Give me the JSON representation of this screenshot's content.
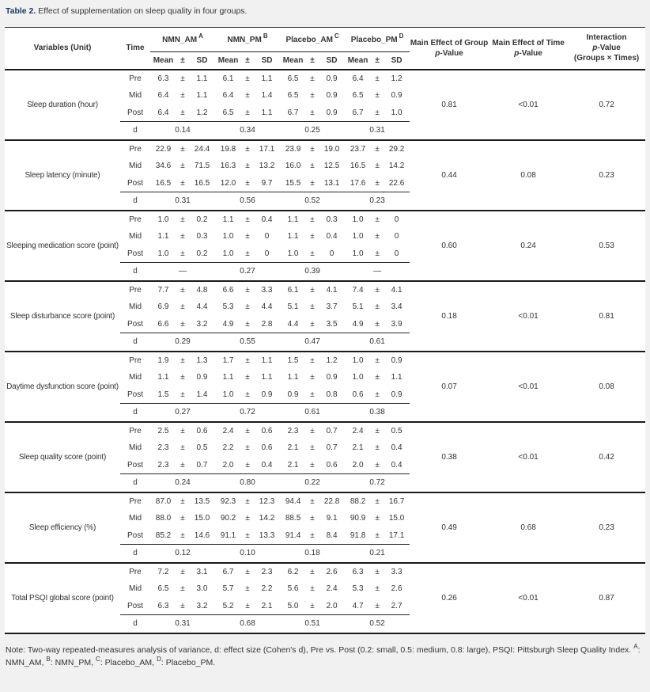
{
  "header": {
    "table_label": "Table 2.",
    "table_caption": " Effect of supplementation on sleep quality in four groups."
  },
  "table": {
    "header": {
      "variables": "Variables (Unit)",
      "time": "Time",
      "groups": [
        {
          "name": "NMN_AM",
          "sup": "A"
        },
        {
          "name": "NMN_PM",
          "sup": "B"
        },
        {
          "name": "Placebo_AM",
          "sup": "C"
        },
        {
          "name": "Placebo_PM",
          "sup": "D"
        }
      ],
      "mean": "Mean",
      "pm": "±",
      "sd": "SD",
      "p_italic": "p",
      "p_suffix": "-Value",
      "group_effect": "Main Effect of Group",
      "time_effect": "Main Effect of Time",
      "interaction": "Interaction",
      "interaction_sub": "(Groups × Times)"
    },
    "blocks": [
      {
        "variable": "Sleep duration (hour)",
        "times": [
          {
            "time": "Pre",
            "values": [
              [
                "6.3",
                "1.1"
              ],
              [
                "6.1",
                "1.1"
              ],
              [
                "6.5",
                "0.9"
              ],
              [
                "6.4",
                "1.2"
              ]
            ]
          },
          {
            "time": "Mid",
            "values": [
              [
                "6.4",
                "1.1"
              ],
              [
                "6.4",
                "1.4"
              ],
              [
                "6.5",
                "0.9"
              ],
              [
                "6.5",
                "0.9"
              ]
            ]
          },
          {
            "time": "Post",
            "values": [
              [
                "6.4",
                "1.2"
              ],
              [
                "6.5",
                "1.1"
              ],
              [
                "6.7",
                "0.9"
              ],
              [
                "6.7",
                "1.0"
              ]
            ]
          }
        ],
        "d_label": "d",
        "d": [
          "0.14",
          "0.34",
          "0.25",
          "0.31"
        ],
        "p_group": "0.81",
        "p_time": "<0.01",
        "p_interaction": "0.72"
      },
      {
        "variable": "Sleep latency (minute)",
        "times": [
          {
            "time": "Pre",
            "values": [
              [
                "22.9",
                "24.4"
              ],
              [
                "19.8",
                "17.1"
              ],
              [
                "23.9",
                "19.0"
              ],
              [
                "23.7",
                "29.2"
              ]
            ]
          },
          {
            "time": "Mid",
            "values": [
              [
                "34.6",
                "71.5"
              ],
              [
                "16.3",
                "13.2"
              ],
              [
                "16.0",
                "12.5"
              ],
              [
                "16.5",
                "14.2"
              ]
            ]
          },
          {
            "time": "Post",
            "values": [
              [
                "16.5",
                "16.5"
              ],
              [
                "12.0",
                "9.7"
              ],
              [
                "15.5",
                "13.1"
              ],
              [
                "17.6",
                "22.6"
              ]
            ]
          }
        ],
        "d_label": "d",
        "d": [
          "0.31",
          "0.56",
          "0.52",
          "0.23"
        ],
        "p_group": "0.44",
        "p_time": "0.08",
        "p_interaction": "0.23"
      },
      {
        "variable": "Sleeping medication score (point)",
        "times": [
          {
            "time": "Pre",
            "values": [
              [
                "1.0",
                "0.2"
              ],
              [
                "1.1",
                "0.4"
              ],
              [
                "1.1",
                "0.3"
              ],
              [
                "1.0",
                "0"
              ]
            ]
          },
          {
            "time": "Mid",
            "values": [
              [
                "1.1",
                "0.3"
              ],
              [
                "1.0",
                "0"
              ],
              [
                "1.1",
                "0.4"
              ],
              [
                "1.0",
                "0"
              ]
            ]
          },
          {
            "time": "Post",
            "values": [
              [
                "1.0",
                "0.2"
              ],
              [
                "1.0",
                "0"
              ],
              [
                "1.0",
                "0"
              ],
              [
                "1.0",
                "0"
              ]
            ]
          }
        ],
        "d_label": "d",
        "d": [
          "—",
          "0.27",
          "0.39",
          "—"
        ],
        "p_group": "0.60",
        "p_time": "0.24",
        "p_interaction": "0.53"
      },
      {
        "variable": "Sleep disturbance score (point)",
        "times": [
          {
            "time": "Pre",
            "values": [
              [
                "7.7",
                "4.8"
              ],
              [
                "6.6",
                "3.3"
              ],
              [
                "6.1",
                "4.1"
              ],
              [
                "7.4",
                "4.1"
              ]
            ]
          },
          {
            "time": "Mid",
            "values": [
              [
                "6.9",
                "4.4"
              ],
              [
                "5.3",
                "4.4"
              ],
              [
                "5.1",
                "3.7"
              ],
              [
                "5.1",
                "3.4"
              ]
            ]
          },
          {
            "time": "Post",
            "values": [
              [
                "6.6",
                "3.2"
              ],
              [
                "4.9",
                "2.8"
              ],
              [
                "4.4",
                "3.5"
              ],
              [
                "4.9",
                "3.9"
              ]
            ]
          }
        ],
        "d_label": "d",
        "d": [
          "0.29",
          "0.55",
          "0.47",
          "0.61"
        ],
        "p_group": "0.18",
        "p_time": "<0.01",
        "p_interaction": "0.81"
      },
      {
        "variable": "Daytime dysfunction score (point)",
        "times": [
          {
            "time": "Pre",
            "values": [
              [
                "1.9",
                "1.3"
              ],
              [
                "1.7",
                "1.1"
              ],
              [
                "1.5",
                "1.2"
              ],
              [
                "1.0",
                "0.9"
              ]
            ]
          },
          {
            "time": "Mid",
            "values": [
              [
                "1.1",
                "0.9"
              ],
              [
                "1.1",
                "1.1"
              ],
              [
                "1.1",
                "0.9"
              ],
              [
                "1.0",
                "1.1"
              ]
            ]
          },
          {
            "time": "Post",
            "values": [
              [
                "1.5",
                "1.4"
              ],
              [
                "1.0",
                "0.9"
              ],
              [
                "0.9",
                "0.8"
              ],
              [
                "0.6",
                "0.9"
              ]
            ]
          }
        ],
        "d_label": "d",
        "d": [
          "0.27",
          "0.72",
          "0.61",
          "0.38"
        ],
        "p_group": "0.07",
        "p_time": "<0.01",
        "p_interaction": "0.08"
      },
      {
        "variable": "Sleep quality score (point)",
        "times": [
          {
            "time": "Pre",
            "values": [
              [
                "2.5",
                "0.6"
              ],
              [
                "2.4",
                "0.6"
              ],
              [
                "2.3",
                "0.7"
              ],
              [
                "2.4",
                "0.5"
              ]
            ]
          },
          {
            "time": "Mid",
            "values": [
              [
                "2.3",
                "0.5"
              ],
              [
                "2.2",
                "0.6"
              ],
              [
                "2.1",
                "0.7"
              ],
              [
                "2.1",
                "0.4"
              ]
            ]
          },
          {
            "time": "Post",
            "values": [
              [
                "2.3",
                "0.7"
              ],
              [
                "2.0",
                "0.4"
              ],
              [
                "2.1",
                "0.6"
              ],
              [
                "2.0",
                "0.4"
              ]
            ]
          }
        ],
        "d_label": "d",
        "d": [
          "0.24",
          "0.80",
          "0.22",
          "0.72"
        ],
        "p_group": "0.38",
        "p_time": "<0.01",
        "p_interaction": "0.42"
      },
      {
        "variable": "Sleep efficiency (%)",
        "times": [
          {
            "time": "Pre",
            "values": [
              [
                "87.0",
                "13.5"
              ],
              [
                "92.3",
                "12.3"
              ],
              [
                "94.4",
                "22.8"
              ],
              [
                "88.2",
                "16.7"
              ]
            ]
          },
          {
            "time": "Mid",
            "values": [
              [
                "88.0",
                "15.0"
              ],
              [
                "90.2",
                "14.2"
              ],
              [
                "88.5",
                "9.1"
              ],
              [
                "90.9",
                "15.0"
              ]
            ]
          },
          {
            "time": "Post",
            "values": [
              [
                "85.2",
                "14.6"
              ],
              [
                "91.1",
                "13.3"
              ],
              [
                "91.4",
                "8.4"
              ],
              [
                "91.8",
                "17.1"
              ]
            ]
          }
        ],
        "d_label": "d",
        "d": [
          "0.12",
          "0.10",
          "0.18",
          "0.21"
        ],
        "p_group": "0.49",
        "p_time": "0.68",
        "p_interaction": "0.23"
      },
      {
        "variable": "Total PSQI global score (point)",
        "times": [
          {
            "time": "Pre",
            "values": [
              [
                "7.2",
                "3.1"
              ],
              [
                "6.7",
                "2.3"
              ],
              [
                "6.2",
                "2.6"
              ],
              [
                "6.3",
                "3.3"
              ]
            ]
          },
          {
            "time": "Mid",
            "values": [
              [
                "6.5",
                "3.0"
              ],
              [
                "5.7",
                "2.2"
              ],
              [
                "5.6",
                "2.4"
              ],
              [
                "5.3",
                "2.6"
              ]
            ]
          },
          {
            "time": "Post",
            "values": [
              [
                "6.3",
                "3.2"
              ],
              [
                "5.2",
                "2.1"
              ],
              [
                "5.0",
                "2.0"
              ],
              [
                "4.7",
                "2.7"
              ]
            ]
          }
        ],
        "d_label": "d",
        "d": [
          "0.31",
          "0.68",
          "0.51",
          "0.52"
        ],
        "p_group": "0.26",
        "p_time": "<0.01",
        "p_interaction": "0.87"
      }
    ]
  },
  "note": {
    "body": "Note: Two-way repeated-measures analysis of variance, d: effect size (Cohen's d), Pre vs. Post (0.2: small, 0.5: medium, 0.8: large), PSQI: Pittsburgh Sleep Quality Index.",
    "abbr": [
      {
        "sup": "A",
        "text": ": NMN_AM,"
      },
      {
        "sup": "B",
        "text": ": NMN_PM,"
      },
      {
        "sup": "C",
        "text": ": Placebo_AM,"
      },
      {
        "sup": "D",
        "text": ": Placebo_PM."
      }
    ]
  }
}
